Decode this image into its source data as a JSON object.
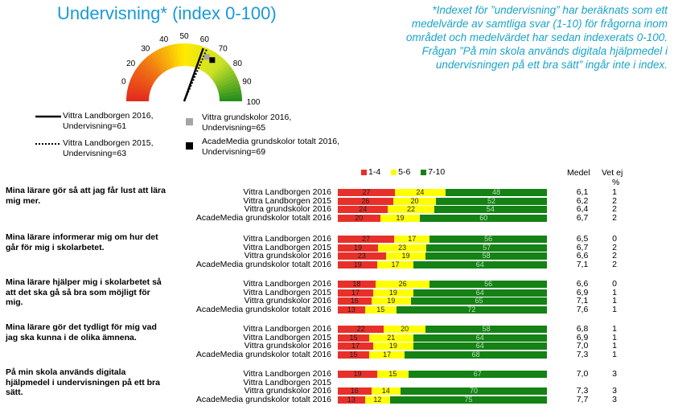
{
  "title": "Undervisning* (index 0-100)",
  "note": "*Indexet för ”undervisning” har beräknats som ett medelvärde av samtliga svar (1-10) för frågorna inom området och medelvärdet har sedan indexerats 0-100. Frågan ”På min skola används digitala hjälpmedel i undervisningen på ett bra sätt” ingår inte i index.",
  "colors": {
    "red": "#e8302a",
    "yellow": "#ffff00",
    "green": "#148214",
    "title": "#1a9ad6"
  },
  "gauge": {
    "ticks": [
      "0",
      "10",
      "20",
      "30",
      "40",
      "50",
      "60",
      "70",
      "80",
      "90",
      "100"
    ],
    "legend": [
      {
        "symbol": "solid-line",
        "text": "Vittra Landborgen 2016, Undervisning=61",
        "value": 61
      },
      {
        "symbol": "dotted-line",
        "text": "Vittra Landborgen 2015, Undervisning=63",
        "value": 63
      },
      {
        "symbol": "gray-square",
        "text": "Vittra grundskolor 2016, Undervisning=65",
        "value": 65
      },
      {
        "symbol": "black-square",
        "text": "AcadeMedia grundskolor totalt 2016, Undervisning=69",
        "value": 69
      }
    ]
  },
  "table_header": {
    "legend": [
      "1-4",
      "5-6",
      "7-10"
    ],
    "medel": "Medel",
    "vetej": "Vet ej",
    "pct": "%"
  },
  "chart_data": {
    "type": "bar",
    "stacked": true,
    "segments": [
      "1-4",
      "5-6",
      "7-10"
    ],
    "questions": [
      {
        "text": "Mina lärare gör så att jag får lust att lära mig mer.",
        "rows": [
          {
            "label": "Vittra Landborgen 2016",
            "values": [
              27,
              24,
              48
            ],
            "medel": "6,1",
            "vetej": "1"
          },
          {
            "label": "Vittra Landborgen 2015",
            "values": [
              26,
              20,
              52
            ],
            "medel": "6,2",
            "vetej": "2"
          },
          {
            "label": "Vittra grundskolor 2016",
            "values": [
              24,
              22,
              54
            ],
            "medel": "6,4",
            "vetej": "2"
          },
          {
            "label": "AcadeMedia grundskolor totalt 2016",
            "values": [
              20,
              19,
              60
            ],
            "medel": "6,7",
            "vetej": "2"
          }
        ]
      },
      {
        "text": "Mina lärare informerar mig om hur det går för mig i skolarbetet.",
        "rows": [
          {
            "label": "Vittra Landborgen 2016",
            "values": [
              27,
              17,
              56
            ],
            "medel": "6,5",
            "vetej": "0"
          },
          {
            "label": "Vittra Landborgen 2015",
            "values": [
              19,
              23,
              57
            ],
            "medel": "6,7",
            "vetej": "2"
          },
          {
            "label": "Vittra grundskolor 2016",
            "values": [
              23,
              19,
              58
            ],
            "medel": "6,6",
            "vetej": "2"
          },
          {
            "label": "AcadeMedia grundskolor totalt 2016",
            "values": [
              19,
              17,
              64
            ],
            "medel": "7,1",
            "vetej": "2"
          }
        ]
      },
      {
        "text": "Mina lärare hjälper mig i skolarbetet så att det ska gå så bra som möjligt för mig.",
        "rows": [
          {
            "label": "Vittra Landborgen 2016",
            "values": [
              18,
              26,
              56
            ],
            "medel": "6,6",
            "vetej": "0"
          },
          {
            "label": "Vittra Landborgen 2015",
            "values": [
              17,
              19,
              64
            ],
            "medel": "6,9",
            "vetej": "1"
          },
          {
            "label": "Vittra grundskolor 2016",
            "values": [
              16,
              19,
              65
            ],
            "medel": "7,1",
            "vetej": "1"
          },
          {
            "label": "AcadeMedia grundskolor totalt 2016",
            "values": [
              13,
              15,
              72
            ],
            "medel": "7,6",
            "vetej": "1"
          }
        ]
      },
      {
        "text": "Mina lärare gör det tydligt för mig vad jag ska kunna i de olika ämnena.",
        "rows": [
          {
            "label": "Vittra Landborgen 2016",
            "values": [
              22,
              20,
              58
            ],
            "medel": "6,8",
            "vetej": "1"
          },
          {
            "label": "Vittra Landborgen 2015",
            "values": [
              15,
              21,
              64
            ],
            "medel": "6,9",
            "vetej": "1"
          },
          {
            "label": "Vittra grundskolor 2016",
            "values": [
              17,
              19,
              64
            ],
            "medel": "7,0",
            "vetej": "1"
          },
          {
            "label": "AcadeMedia grundskolor totalt 2016",
            "values": [
              15,
              17,
              68
            ],
            "medel": "7,3",
            "vetej": "1"
          }
        ]
      },
      {
        "text": "På min skola används digitala hjälpmedel i undervisningen på ett bra sätt.",
        "rows": [
          {
            "label": "Vittra Landborgen 2016",
            "values": [
              19,
              15,
              67
            ],
            "medel": "7,0",
            "vetej": "3"
          },
          {
            "label": "Vittra Landborgen 2015",
            "values": null,
            "medel": "",
            "vetej": ""
          },
          {
            "label": "Vittra grundskolor 2016",
            "values": [
              16,
              14,
              70
            ],
            "medel": "7,3",
            "vetej": "3"
          },
          {
            "label": "AcadeMedia grundskolor totalt 2016",
            "values": [
              13,
              12,
              75
            ],
            "medel": "7,7",
            "vetej": "3"
          }
        ]
      }
    ]
  }
}
